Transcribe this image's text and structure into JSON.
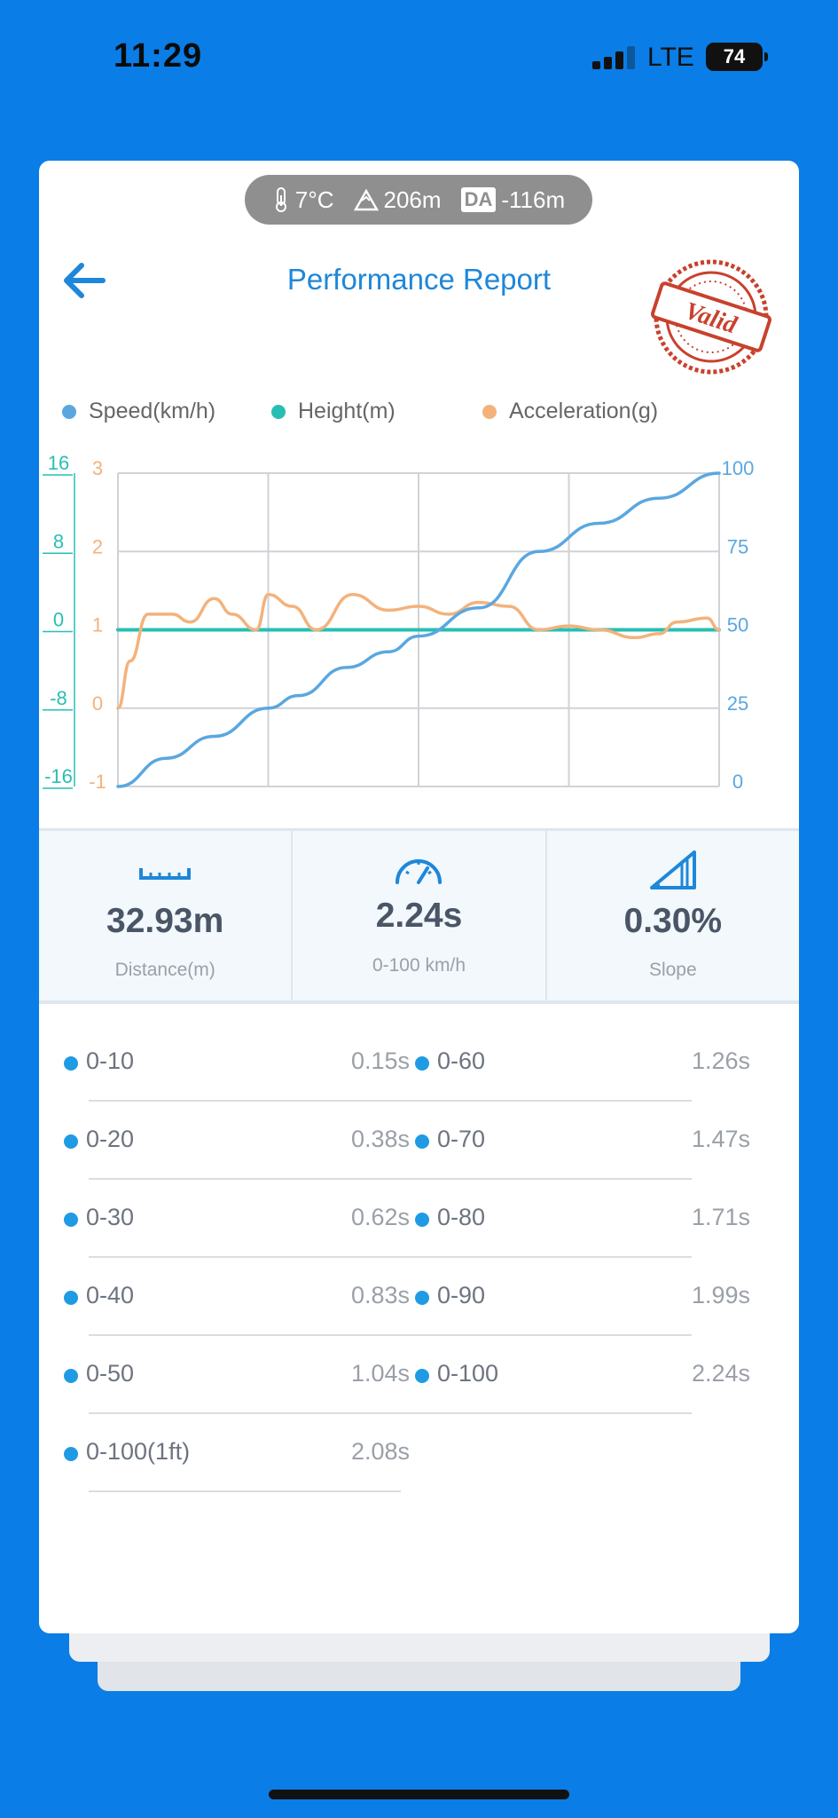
{
  "status_bar": {
    "time": "11:29",
    "network": "LTE",
    "battery": "74"
  },
  "conditions": {
    "temperature": "7°C",
    "elevation": "206m",
    "da_label": "DA",
    "density_altitude": "-116m"
  },
  "header": {
    "title": "Performance Report",
    "stamp_text": "Valid"
  },
  "legend": {
    "speed": "Speed(km/h)",
    "height": "Height(m)",
    "acceleration": "Acceleration(g)"
  },
  "colors": {
    "speed": "#5aa7e0",
    "height": "#27bfb3",
    "acceleration": "#f3b27c",
    "accent": "#1e87d9",
    "stamp": "#c8412d"
  },
  "chart_data": {
    "type": "line",
    "x_range": [
      0,
      1
    ],
    "axes": {
      "height_ticks": [
        "16",
        "8",
        "0",
        "-8",
        "-16"
      ],
      "acceleration_ticks": [
        "3",
        "2",
        "1",
        "0",
        "-1"
      ],
      "speed_ticks": [
        "100",
        "75",
        "50",
        "25",
        "0"
      ],
      "height_range": [
        -16,
        16
      ],
      "acceleration_range": [
        -1,
        3
      ],
      "speed_range": [
        0,
        100
      ]
    },
    "grid": true,
    "series": [
      {
        "name": "Speed(km/h)",
        "axis": "speed",
        "x": [
          0,
          0.08,
          0.16,
          0.25,
          0.3,
          0.38,
          0.45,
          0.5,
          0.6,
          0.7,
          0.8,
          0.9,
          1.0
        ],
        "values": [
          0,
          9,
          16,
          25,
          29,
          38,
          43,
          48,
          57,
          75,
          84,
          92,
          100
        ]
      },
      {
        "name": "Height(m)",
        "axis": "height",
        "x": [
          0,
          1
        ],
        "values": [
          0,
          0
        ]
      },
      {
        "name": "Acceleration(g)",
        "axis": "acceleration",
        "x": [
          0,
          0.02,
          0.05,
          0.09,
          0.12,
          0.16,
          0.19,
          0.23,
          0.25,
          0.29,
          0.33,
          0.39,
          0.45,
          0.5,
          0.55,
          0.6,
          0.65,
          0.7,
          0.75,
          0.8,
          0.86,
          0.9,
          0.93,
          0.98,
          1.0
        ],
        "values": [
          0,
          0.6,
          1.2,
          1.2,
          1.1,
          1.4,
          1.2,
          1.0,
          1.45,
          1.3,
          1.0,
          1.45,
          1.25,
          1.3,
          1.2,
          1.35,
          1.3,
          1.0,
          1.05,
          1.0,
          0.9,
          0.95,
          1.1,
          1.15,
          1.0
        ]
      }
    ]
  },
  "stats": [
    {
      "value": "32.93m",
      "label": "Distance(m)",
      "icon": "ruler-icon"
    },
    {
      "value": "2.24s",
      "label": "0-100 km/h",
      "icon": "speedometer-icon"
    },
    {
      "value": "0.30%",
      "label": "Slope",
      "icon": "slope-icon"
    }
  ],
  "splits": [
    {
      "label": "0-10",
      "value": "0.15s"
    },
    {
      "label": "0-60",
      "value": "1.26s"
    },
    {
      "label": "0-20",
      "value": "0.38s"
    },
    {
      "label": "0-70",
      "value": "1.47s"
    },
    {
      "label": "0-30",
      "value": "0.62s"
    },
    {
      "label": "0-80",
      "value": "1.71s"
    },
    {
      "label": "0-40",
      "value": "0.83s"
    },
    {
      "label": "0-90",
      "value": "1.99s"
    },
    {
      "label": "0-50",
      "value": "1.04s"
    },
    {
      "label": "0-100",
      "value": "2.24s"
    },
    {
      "label": "0-100(1ft)",
      "value": "2.08s"
    }
  ]
}
